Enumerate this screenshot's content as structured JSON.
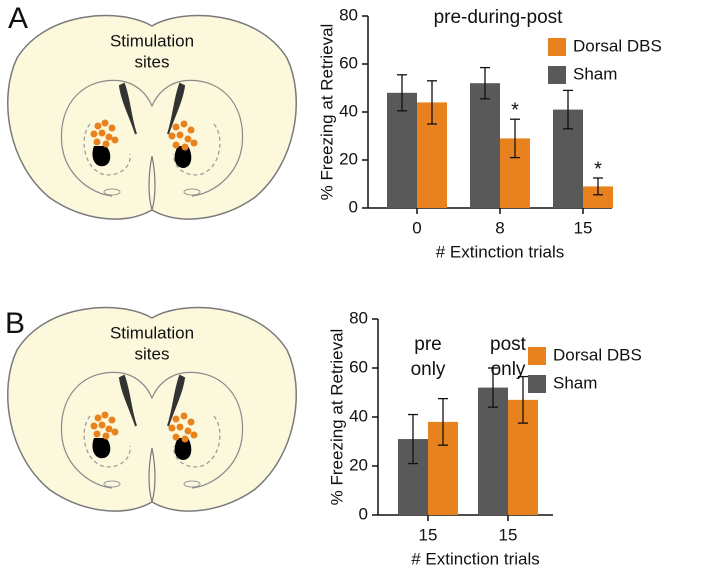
{
  "chart_data": [
    {
      "type": "bar",
      "panel_label": "A",
      "diagram_label": [
        "Stimulation",
        "sites"
      ],
      "title": "pre-during-post",
      "xlabel": "# Extinction trials",
      "ylabel": "% Freezing at Retrieval",
      "categories": [
        "0",
        "8",
        "15"
      ],
      "series": [
        {
          "name": "Sham",
          "color": "#595959",
          "values": [
            48,
            52,
            41
          ],
          "errors": [
            7.5,
            6.5,
            8
          ]
        },
        {
          "name": "Dorsal DBS",
          "color": "#e8821e",
          "values": [
            44,
            29,
            9
          ],
          "errors": [
            9,
            8,
            3.5
          ],
          "significance": [
            null,
            "*",
            "*"
          ]
        }
      ],
      "ylim": [
        0,
        80
      ],
      "yticks": [
        0,
        20,
        40,
        60,
        80
      ]
    },
    {
      "type": "bar",
      "panel_label": "B",
      "diagram_label": [
        "Stimulation",
        "sites"
      ],
      "group_labels": [
        [
          "pre",
          "only"
        ],
        [
          "post",
          "only"
        ]
      ],
      "xlabel": "# Extinction trials",
      "ylabel": "% Freezing at Retrieval",
      "categories": [
        "15",
        "15"
      ],
      "series": [
        {
          "name": "Sham",
          "color": "#595959",
          "values": [
            31,
            52
          ],
          "errors": [
            10,
            8
          ]
        },
        {
          "name": "Dorsal DBS",
          "color": "#e8821e",
          "values": [
            38,
            47
          ],
          "errors": [
            9.5,
            9.5
          ]
        }
      ],
      "ylim": [
        0,
        80
      ],
      "yticks": [
        0,
        20,
        40,
        60,
        80
      ]
    }
  ]
}
